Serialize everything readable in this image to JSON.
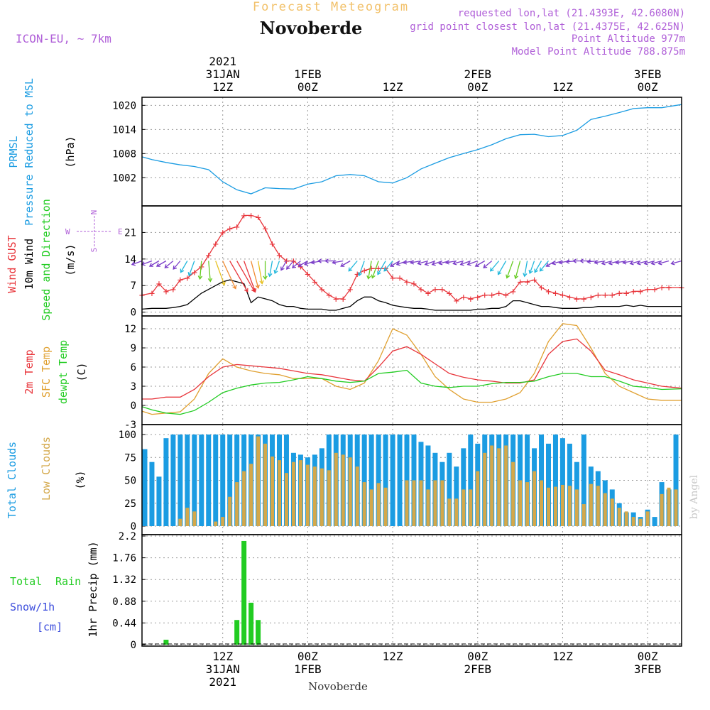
{
  "header": {
    "forecast_title": "Forecast Meteogram",
    "location": "Novoberde",
    "model": "ICON-EU, ~ 7km",
    "requested": "requested lon,lat (21.4393E, 42.6080N)",
    "grid_point": "grid point closest lon,lat (21.4375E, 42.625N)",
    "point_alt": "Point Altitude 977m",
    "model_alt": "Model Point Altitude 788.875m"
  },
  "footer": {
    "location": "Novoberde",
    "watermark": "by Angel"
  },
  "time_axis": {
    "top_labels": [
      {
        "h": 12,
        "lines": [
          "2021",
          "31JAN",
          "12Z"
        ]
      },
      {
        "h": 24,
        "lines": [
          "1FEB",
          "00Z"
        ]
      },
      {
        "h": 36,
        "lines": [
          "12Z"
        ]
      },
      {
        "h": 48,
        "lines": [
          "2FEB",
          "00Z"
        ]
      },
      {
        "h": 60,
        "lines": [
          "12Z"
        ]
      },
      {
        "h": 72,
        "lines": [
          "3FEB",
          "00Z"
        ]
      }
    ],
    "bottom_labels": [
      {
        "h": 12,
        "lines": [
          "12Z",
          "31JAN",
          "2021"
        ]
      },
      {
        "h": 24,
        "lines": [
          "00Z",
          "1FEB"
        ]
      },
      {
        "h": 36,
        "lines": [
          "12Z"
        ]
      },
      {
        "h": 48,
        "lines": [
          "00Z",
          "2FEB"
        ]
      },
      {
        "h": 60,
        "lines": [
          "12Z"
        ]
      },
      {
        "h": 72,
        "lines": [
          "00Z",
          "3FEB"
        ]
      }
    ],
    "start_h": 0.6,
    "end_h": 76.8
  },
  "panel_labels": {
    "p1": {
      "a": "PRMSL",
      "b": "Pressure Reduced to MSL",
      "unit": "(hPa)"
    },
    "p2": {
      "a": "Wind GUST",
      "b": "10m Wind",
      "c": "Speed and Direction",
      "unit": "(m/s)",
      "compass_w": "W",
      "compass_e": "E",
      "compass_n": "N",
      "compass_s": "S"
    },
    "p3": {
      "a": "2m Temp",
      "b": "SFC Temp",
      "c": "dewpt Temp",
      "unit": "(C)"
    },
    "p4": {
      "a": "Total Clouds",
      "b": "Low Clouds",
      "unit": "(%)"
    },
    "p5": {
      "a": "Total",
      "a2": "Rain",
      "b": "Snow/1h",
      "c": "[cm]",
      "unit": "1hr Precip (mm)"
    }
  },
  "colors": {
    "pressure": "#1b9ce2",
    "gust": "#e8353b",
    "wind": "#000000",
    "temp2m": "#e8353b",
    "sfc": "#e0a030",
    "dew": "#22cc22",
    "total_cloud": "#1b9ce2",
    "low_cloud": "#d4a84a",
    "rain": "#22cc22",
    "snow": "#3a4bdc",
    "label_purple": "#b060d8",
    "title_orange": "#f2c16a"
  },
  "chart_data": [
    {
      "type": "line",
      "title": "PRMSL Pressure Reduced to MSL",
      "ylabel": "(hPa)",
      "ylim": [
        995,
        1022
      ],
      "yticks": [
        1002,
        1008,
        1014,
        1020
      ],
      "x": [
        0.6,
        2,
        4,
        6,
        8,
        10,
        12,
        14,
        16,
        18,
        20,
        22,
        24,
        26,
        28,
        30,
        32,
        34,
        36,
        38,
        40,
        42,
        44,
        46,
        48,
        50,
        52,
        54,
        56,
        58,
        60,
        62,
        64,
        66,
        68,
        70,
        72,
        74,
        76.8
      ],
      "values": [
        1007.2,
        1006.5,
        1005.8,
        1005.2,
        1004.8,
        1004.0,
        1001.0,
        999.0,
        998.0,
        999.5,
        999.3,
        999.2,
        1000.4,
        1001.0,
        1002.5,
        1002.8,
        1002.5,
        1001.0,
        1000.7,
        1002.0,
        1004.2,
        1005.6,
        1007.0,
        1008.0,
        1009.0,
        1010.2,
        1011.7,
        1012.7,
        1012.8,
        1012.2,
        1012.5,
        1013.8,
        1016.5,
        1017.3,
        1018.2,
        1019.2,
        1019.4,
        1019.4,
        1020.2
      ]
    },
    {
      "type": "line",
      "title": "Wind GUST / 10m Wind Speed and Direction",
      "ylabel": "(m/s)",
      "ylim": [
        -1,
        28
      ],
      "yticks": [
        0,
        7,
        14,
        21
      ],
      "x": [
        0.6,
        2,
        3,
        4,
        5,
        6,
        7,
        8,
        9,
        10,
        11,
        12,
        13,
        14,
        15,
        16,
        17,
        18,
        19,
        20,
        21,
        22,
        23,
        24,
        25,
        26,
        27,
        28,
        29,
        30,
        31,
        32,
        33,
        34,
        35,
        36,
        37,
        38,
        39,
        40,
        41,
        42,
        43,
        44,
        45,
        46,
        47,
        48,
        49,
        50,
        51,
        52,
        53,
        54,
        55,
        56,
        57,
        58,
        59,
        60,
        61,
        62,
        63,
        64,
        65,
        66,
        67,
        68,
        69,
        70,
        71,
        72,
        73,
        74,
        75,
        76.8
      ],
      "series": [
        {
          "name": "Wind GUST",
          "values": [
            4.5,
            5,
            7.5,
            5.5,
            6,
            8.5,
            9,
            10.5,
            12,
            15,
            18,
            21,
            22,
            22.5,
            25.5,
            25.5,
            25,
            22,
            18,
            15,
            13.5,
            13.5,
            12,
            10,
            8,
            6,
            4.5,
            3.5,
            3.5,
            6,
            10,
            11,
            11.5,
            11.5,
            11.5,
            9,
            9,
            8,
            7.5,
            6,
            5,
            6,
            6,
            5,
            3,
            4,
            3.5,
            4,
            4.5,
            4.5,
            5,
            4.5,
            5.5,
            8,
            8,
            8.5,
            6.5,
            5.5,
            5,
            4.5,
            4,
            3.5,
            3.5,
            4,
            4.5,
            4.5,
            4.5,
            5,
            5,
            5.5,
            5.5,
            6,
            6,
            6.5,
            6.5,
            6.5
          ]
        },
        {
          "name": "10m Wind",
          "values": [
            0.8,
            1,
            1,
            1,
            1.2,
            1.5,
            2,
            3.5,
            5,
            6,
            7,
            8,
            8.5,
            8,
            7.5,
            2.5,
            4,
            3.5,
            3,
            2,
            1.5,
            1.5,
            1,
            0.8,
            0.8,
            0.8,
            0.5,
            0.5,
            1,
            1.5,
            3,
            4,
            4,
            3,
            2.5,
            1.8,
            1.5,
            1.2,
            1,
            1,
            0.8,
            0.5,
            0.5,
            0.5,
            0.5,
            0.5,
            0.5,
            0.8,
            0.8,
            1,
            1,
            1.5,
            3,
            3,
            2.5,
            2,
            1.5,
            1.5,
            1.2,
            1,
            1,
            1,
            1.2,
            1.2,
            1.5,
            1.5,
            1.5,
            1.5,
            1.8,
            1.5,
            1.8,
            1.5,
            1.5,
            1.5,
            1.5,
            1.5
          ]
        }
      ],
      "arrows": {
        "x": [
          0.6,
          2,
          3,
          4,
          5,
          6,
          7,
          8,
          9,
          10,
          11,
          12,
          13,
          14,
          15,
          16,
          17,
          18,
          19,
          20,
          21,
          22,
          23,
          24,
          25,
          26,
          27,
          28,
          29,
          30,
          31,
          32,
          33,
          34,
          35,
          36,
          37,
          38,
          39,
          40,
          41,
          42,
          43,
          44,
          45,
          46,
          47,
          48,
          49,
          50,
          51,
          52,
          53,
          54,
          55,
          56,
          57,
          58,
          59,
          60,
          61,
          62,
          63,
          64,
          65,
          66,
          67,
          68,
          69,
          70,
          71,
          72,
          73,
          74,
          75,
          76.8
        ],
        "dir": [
          250,
          250,
          240,
          240,
          230,
          220,
          210,
          200,
          185,
          175,
          160,
          155,
          150,
          150,
          160,
          165,
          170,
          180,
          190,
          200,
          210,
          220,
          230,
          240,
          250,
          260,
          270,
          270,
          260,
          240,
          220,
          200,
          190,
          200,
          210,
          220,
          240,
          250,
          260,
          260,
          255,
          250,
          250,
          255,
          260,
          255,
          250,
          250,
          240,
          230,
          220,
          210,
          200,
          195,
          190,
          200,
          210,
          220,
          240,
          255,
          260,
          265,
          270,
          270,
          265,
          260,
          255,
          255,
          260,
          260,
          255,
          255,
          255,
          255,
          255,
          255
        ],
        "spd": [
          2,
          2,
          2,
          2,
          2,
          2,
          3,
          4,
          5,
          6,
          8,
          10,
          12,
          12,
          11,
          9,
          7,
          5,
          4,
          3,
          2,
          2,
          2,
          2,
          2,
          2,
          2,
          2,
          2,
          2,
          3,
          4,
          5,
          5,
          4,
          3,
          2,
          2,
          2,
          2,
          2,
          2,
          2,
          2,
          2,
          2,
          2,
          2,
          2,
          2,
          3,
          4,
          5,
          5,
          4,
          3,
          3,
          3,
          2,
          2,
          2,
          2,
          2,
          2,
          2,
          2,
          2,
          2,
          2,
          2,
          2,
          2,
          2,
          2,
          2,
          2
        ]
      }
    },
    {
      "type": "line",
      "title": "2m Temp / SFC Temp / dewpt Temp",
      "ylabel": "(C)",
      "ylim": [
        -3,
        14
      ],
      "yticks": [
        -3,
        0,
        3,
        6,
        9,
        12
      ],
      "x": [
        0.6,
        2,
        4,
        6,
        8,
        10,
        12,
        14,
        16,
        18,
        20,
        22,
        24,
        26,
        28,
        30,
        32,
        34,
        36,
        38,
        40,
        42,
        44,
        46,
        48,
        50,
        52,
        54,
        56,
        58,
        60,
        62,
        64,
        66,
        68,
        70,
        72,
        74,
        76.8
      ],
      "series": [
        {
          "name": "2m Temp",
          "values": [
            1,
            1,
            1.3,
            1.3,
            2.5,
            4.5,
            6,
            6.4,
            6.2,
            6,
            5.8,
            5.4,
            5,
            4.8,
            4.4,
            4,
            3.8,
            6,
            8.5,
            9.2,
            8,
            6.5,
            5,
            4.4,
            4,
            3.8,
            3.5,
            3.5,
            4,
            8,
            10,
            10.4,
            8.5,
            5.5,
            4.8,
            4,
            3.5,
            3,
            2.7
          ]
        },
        {
          "name": "SFC Temp",
          "values": [
            -0.9,
            -1.4,
            -1.2,
            -1.0,
            1,
            5,
            7.3,
            6,
            5.4,
            5,
            4.8,
            4.2,
            4.2,
            4.2,
            3,
            2.5,
            3.5,
            7,
            12,
            11,
            8,
            4.5,
            2.5,
            1,
            0.5,
            0.5,
            1,
            2,
            5,
            10,
            12.8,
            12.5,
            9,
            5,
            3,
            2,
            1,
            0.8,
            0.8
          ]
        },
        {
          "name": "dewpt Temp",
          "values": [
            -0.2,
            -0.7,
            -1.2,
            -1.4,
            -0.8,
            0.5,
            2,
            2.7,
            3.2,
            3.5,
            3.6,
            4,
            4.5,
            4.2,
            3.8,
            3.6,
            3.8,
            5,
            5.2,
            5.5,
            3.5,
            3,
            2.8,
            3,
            3,
            3.4,
            3.6,
            3.6,
            3.8,
            4.5,
            5,
            5,
            4.5,
            4.5,
            3.8,
            3,
            2.8,
            2.5,
            2.6
          ]
        }
      ]
    },
    {
      "type": "bar",
      "title": "Total Clouds / Low Clouds",
      "ylabel": "(%)",
      "ylim": [
        0,
        100
      ],
      "yticks": [
        0,
        25,
        50,
        75,
        100
      ],
      "x": [
        1,
        2,
        3,
        4,
        5,
        6,
        7,
        8,
        9,
        10,
        11,
        12,
        13,
        14,
        15,
        16,
        17,
        18,
        19,
        20,
        21,
        22,
        23,
        24,
        25,
        26,
        27,
        28,
        29,
        30,
        31,
        32,
        33,
        34,
        35,
        36,
        37,
        38,
        39,
        40,
        41,
        42,
        43,
        44,
        45,
        46,
        47,
        48,
        49,
        50,
        51,
        52,
        53,
        54,
        55,
        56,
        57,
        58,
        59,
        60,
        61,
        62,
        63,
        64,
        65,
        66,
        67,
        68,
        69,
        70,
        71,
        72,
        73,
        74,
        75,
        76
      ],
      "series": [
        {
          "name": "Total Clouds",
          "values": [
            84,
            70,
            54,
            96,
            100,
            100,
            100,
            100,
            100,
            100,
            100,
            100,
            100,
            100,
            100,
            100,
            100,
            100,
            100,
            100,
            100,
            80,
            78,
            75,
            78,
            85,
            100,
            100,
            100,
            100,
            100,
            100,
            100,
            100,
            100,
            100,
            100,
            100,
            100,
            92,
            88,
            80,
            70,
            80,
            65,
            85,
            100,
            90,
            100,
            100,
            100,
            100,
            100,
            100,
            100,
            85,
            100,
            90,
            100,
            96,
            90,
            70,
            100,
            65,
            60,
            50,
            40,
            25,
            15,
            15,
            10,
            18,
            10,
            48,
            40,
            100
          ]
        },
        {
          "name": "Low Clouds",
          "values": [
            0,
            0,
            0,
            0,
            0,
            8,
            20,
            16,
            0,
            0,
            5,
            10,
            32,
            48,
            60,
            68,
            98,
            90,
            76,
            72,
            58,
            70,
            72,
            67,
            65,
            63,
            61,
            80,
            78,
            75,
            65,
            48,
            40,
            47,
            42,
            0,
            0,
            50,
            50,
            50,
            40,
            50,
            50,
            30,
            30,
            40,
            40,
            60,
            80,
            88,
            85,
            88,
            70,
            50,
            48,
            60,
            50,
            42,
            43,
            45,
            44,
            40,
            24,
            46,
            44,
            36,
            30,
            20,
            16,
            10,
            8,
            16,
            0,
            35,
            42,
            40
          ]
        }
      ]
    },
    {
      "type": "bar",
      "title": "Total Rain / Snow 1h",
      "ylabel": "1hr Precip (mm)",
      "ylim": [
        0,
        2.2
      ],
      "yticks": [
        0,
        0.44,
        0.88,
        1.32,
        1.76,
        2.2
      ],
      "x": [
        4,
        14,
        15,
        16,
        17
      ],
      "series": [
        {
          "name": "Total Rain",
          "values": [
            0.1,
            0.5,
            2.1,
            0.85,
            0.5
          ]
        },
        {
          "name": "Snow/1h",
          "values": [
            0,
            0,
            0,
            0,
            0
          ]
        }
      ]
    }
  ]
}
